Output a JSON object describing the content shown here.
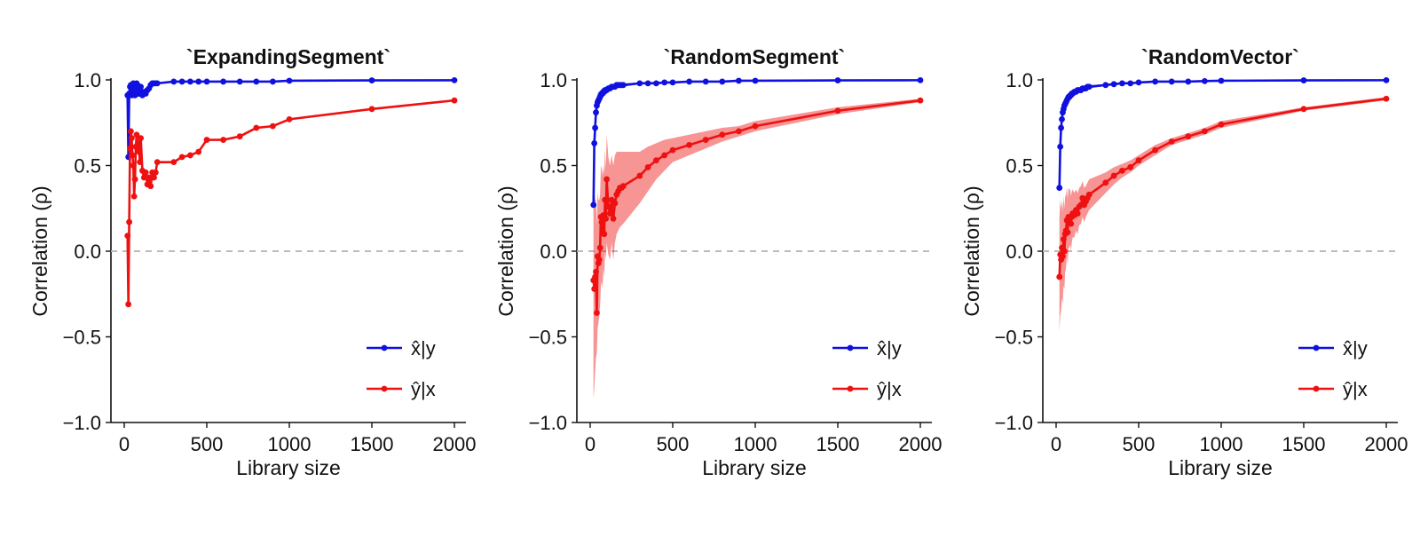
{
  "chart_data": [
    {
      "type": "line",
      "title": "`ExpandingSegment`",
      "xlabel": "Library size",
      "ylabel": "Correlation (ρ)",
      "xlim": [
        0,
        2000
      ],
      "ylim": [
        -1.0,
        1.0
      ],
      "xticks": [
        0,
        500,
        1000,
        1500,
        2000
      ],
      "yticks": [
        -1.0,
        -0.5,
        0.0,
        0.5,
        1.0
      ],
      "xtick_labels": [
        "0",
        "500",
        "1000",
        "1500",
        "2000"
      ],
      "ytick_labels": [
        "−1.0",
        "−0.5",
        "0.0",
        "0.5",
        "1.0"
      ],
      "reference_line": {
        "y": 0,
        "style": "dashed",
        "color": "#bbbbbb"
      },
      "grid": false,
      "legend": "bottom-right",
      "series": [
        {
          "name": "x̂|y",
          "color": "#1010e0",
          "x": [
            20,
            25,
            30,
            35,
            40,
            45,
            50,
            55,
            60,
            65,
            70,
            75,
            80,
            85,
            90,
            95,
            100,
            110,
            120,
            130,
            140,
            150,
            160,
            170,
            180,
            190,
            200,
            300,
            350,
            400,
            450,
            500,
            600,
            700,
            800,
            900,
            1000,
            1500,
            2000
          ],
          "y": [
            0.91,
            0.55,
            0.92,
            0.96,
            0.97,
            0.91,
            0.94,
            0.98,
            0.94,
            0.91,
            0.95,
            0.98,
            0.97,
            0.92,
            0.92,
            0.93,
            0.96,
            0.91,
            0.93,
            0.92,
            0.94,
            0.95,
            0.97,
            0.98,
            0.98,
            0.98,
            0.98,
            0.99,
            0.99,
            0.99,
            0.99,
            0.99,
            0.99,
            0.99,
            0.99,
            0.99,
            0.995,
            0.997,
            0.998
          ]
        },
        {
          "name": "ŷ|x",
          "color": "#ee1111",
          "x": [
            20,
            25,
            30,
            35,
            40,
            45,
            50,
            55,
            60,
            65,
            70,
            75,
            80,
            85,
            90,
            95,
            100,
            110,
            120,
            130,
            140,
            150,
            160,
            170,
            180,
            190,
            200,
            300,
            350,
            400,
            450,
            500,
            600,
            700,
            800,
            900,
            1000,
            1500,
            2000
          ],
          "y": [
            0.09,
            -0.31,
            0.17,
            0.6,
            0.7,
            0.66,
            0.56,
            0.5,
            0.32,
            0.42,
            0.61,
            0.68,
            0.6,
            0.63,
            0.58,
            0.52,
            0.66,
            0.47,
            0.43,
            0.46,
            0.39,
            0.43,
            0.38,
            0.46,
            0.43,
            0.46,
            0.52,
            0.52,
            0.55,
            0.56,
            0.58,
            0.65,
            0.65,
            0.67,
            0.72,
            0.73,
            0.77,
            0.83,
            0.88
          ]
        }
      ]
    },
    {
      "type": "line",
      "title": "`RandomSegment`",
      "xlabel": "Library size",
      "ylabel": "Correlation (ρ)",
      "xlim": [
        0,
        2000
      ],
      "ylim": [
        -1.0,
        1.0
      ],
      "xticks": [
        0,
        500,
        1000,
        1500,
        2000
      ],
      "yticks": [
        -1.0,
        -0.5,
        0.0,
        0.5,
        1.0
      ],
      "xtick_labels": [
        "0",
        "500",
        "1000",
        "1500",
        "2000"
      ],
      "ytick_labels": [
        "−1.0",
        "−0.5",
        "0.0",
        "0.5",
        "1.0"
      ],
      "reference_line": {
        "y": 0,
        "style": "dashed",
        "color": "#bbbbbb"
      },
      "grid": false,
      "legend": "bottom-right",
      "series": [
        {
          "name": "x̂|y",
          "color": "#1010e0",
          "x": [
            20,
            25,
            30,
            35,
            40,
            45,
            50,
            55,
            60,
            65,
            70,
            75,
            80,
            85,
            90,
            95,
            100,
            110,
            120,
            130,
            140,
            150,
            160,
            170,
            180,
            190,
            200,
            300,
            350,
            400,
            450,
            500,
            600,
            700,
            800,
            900,
            1000,
            1500,
            2000
          ],
          "y": [
            0.27,
            0.63,
            0.72,
            0.81,
            0.85,
            0.87,
            0.88,
            0.89,
            0.9,
            0.91,
            0.92,
            0.92,
            0.93,
            0.93,
            0.94,
            0.94,
            0.94,
            0.95,
            0.95,
            0.96,
            0.96,
            0.96,
            0.97,
            0.97,
            0.97,
            0.97,
            0.97,
            0.98,
            0.98,
            0.98,
            0.985,
            0.985,
            0.99,
            0.99,
            0.99,
            0.995,
            0.995,
            0.997,
            0.998
          ],
          "band_lower": [
            0.2,
            0.52,
            0.64,
            0.74,
            0.8,
            0.83,
            0.84,
            0.86,
            0.87,
            0.88,
            0.89,
            0.9,
            0.91,
            0.91,
            0.92,
            0.92,
            0.92,
            0.93,
            0.94,
            0.95,
            0.95,
            0.95,
            0.96,
            0.96,
            0.96,
            0.96,
            0.96,
            0.975,
            0.975,
            0.98,
            0.98,
            0.98,
            0.985,
            0.985,
            0.99,
            0.99,
            0.99,
            0.995,
            0.996
          ],
          "band_upper": [
            0.36,
            0.72,
            0.8,
            0.87,
            0.9,
            0.92,
            0.93,
            0.93,
            0.94,
            0.94,
            0.95,
            0.95,
            0.95,
            0.95,
            0.96,
            0.96,
            0.96,
            0.97,
            0.97,
            0.97,
            0.97,
            0.97,
            0.98,
            0.98,
            0.98,
            0.98,
            0.98,
            0.985,
            0.985,
            0.99,
            0.99,
            0.99,
            0.995,
            0.995,
            0.995,
            0.998,
            0.998,
            0.999,
            1.0
          ]
        },
        {
          "name": "ŷ|x",
          "color": "#ee1111",
          "x": [
            20,
            25,
            30,
            35,
            40,
            45,
            50,
            55,
            60,
            65,
            70,
            75,
            80,
            85,
            90,
            95,
            100,
            110,
            120,
            130,
            140,
            150,
            160,
            170,
            180,
            190,
            200,
            300,
            350,
            400,
            450,
            500,
            600,
            700,
            800,
            900,
            1000,
            1500,
            2000
          ],
          "y": [
            -0.17,
            -0.22,
            -0.15,
            -0.12,
            -0.36,
            -0.03,
            -0.07,
            -0.05,
            0.02,
            0.2,
            0.17,
            0.12,
            0.21,
            0.1,
            0.3,
            0.19,
            0.42,
            0.26,
            0.22,
            0.3,
            0.19,
            0.28,
            0.33,
            0.35,
            0.37,
            0.37,
            0.38,
            0.44,
            0.49,
            0.53,
            0.56,
            0.59,
            0.62,
            0.65,
            0.68,
            0.7,
            0.73,
            0.82,
            0.88
          ],
          "band_lower": [
            -0.86,
            -0.8,
            -0.7,
            -0.62,
            -0.6,
            -0.45,
            -0.42,
            -0.38,
            -0.32,
            -0.2,
            -0.18,
            -0.22,
            -0.1,
            -0.15,
            0.0,
            -0.05,
            0.05,
            -0.02,
            -0.05,
            0.05,
            -0.05,
            0.05,
            0.1,
            0.12,
            0.14,
            0.15,
            0.16,
            0.28,
            0.35,
            0.42,
            0.47,
            0.52,
            0.56,
            0.6,
            0.64,
            0.67,
            0.7,
            0.8,
            0.87
          ],
          "band_upper": [
            0.4,
            0.35,
            0.3,
            0.3,
            0.15,
            0.35,
            0.3,
            0.3,
            0.33,
            0.5,
            0.48,
            0.44,
            0.5,
            0.45,
            0.6,
            0.48,
            0.68,
            0.55,
            0.5,
            0.56,
            0.5,
            0.56,
            0.58,
            0.58,
            0.58,
            0.58,
            0.58,
            0.58,
            0.61,
            0.63,
            0.65,
            0.66,
            0.68,
            0.7,
            0.72,
            0.73,
            0.76,
            0.84,
            0.89
          ]
        }
      ]
    },
    {
      "type": "line",
      "title": "`RandomVector`",
      "xlabel": "Library size",
      "ylabel": "Correlation (ρ)",
      "xlim": [
        0,
        2000
      ],
      "ylim": [
        -1.0,
        1.0
      ],
      "xticks": [
        0,
        500,
        1000,
        1500,
        2000
      ],
      "yticks": [
        -1.0,
        -0.5,
        0.0,
        0.5,
        1.0
      ],
      "xtick_labels": [
        "0",
        "500",
        "1000",
        "1500",
        "2000"
      ],
      "ytick_labels": [
        "−1.0",
        "−0.5",
        "0.0",
        "0.5",
        "1.0"
      ],
      "reference_line": {
        "y": 0,
        "style": "dashed",
        "color": "#bbbbbb"
      },
      "grid": false,
      "legend": "bottom-right",
      "series": [
        {
          "name": "x̂|y",
          "color": "#1010e0",
          "x": [
            20,
            25,
            30,
            35,
            40,
            45,
            50,
            55,
            60,
            65,
            70,
            75,
            80,
            85,
            90,
            95,
            100,
            110,
            120,
            130,
            140,
            150,
            160,
            170,
            180,
            190,
            200,
            300,
            350,
            400,
            450,
            500,
            600,
            700,
            800,
            900,
            1000,
            1500,
            2000
          ],
          "y": [
            0.37,
            0.61,
            0.72,
            0.77,
            0.81,
            0.83,
            0.85,
            0.86,
            0.87,
            0.88,
            0.89,
            0.9,
            0.9,
            0.91,
            0.91,
            0.92,
            0.92,
            0.93,
            0.93,
            0.94,
            0.94,
            0.94,
            0.95,
            0.95,
            0.95,
            0.96,
            0.96,
            0.97,
            0.975,
            0.98,
            0.98,
            0.985,
            0.99,
            0.99,
            0.99,
            0.993,
            0.995,
            0.997,
            0.998
          ],
          "band_lower": [
            0.3,
            0.55,
            0.67,
            0.73,
            0.77,
            0.8,
            0.82,
            0.83,
            0.85,
            0.86,
            0.87,
            0.88,
            0.88,
            0.89,
            0.9,
            0.9,
            0.91,
            0.92,
            0.92,
            0.93,
            0.93,
            0.93,
            0.94,
            0.94,
            0.94,
            0.95,
            0.95,
            0.965,
            0.97,
            0.975,
            0.975,
            0.98,
            0.985,
            0.985,
            0.988,
            0.99,
            0.992,
            0.995,
            0.997
          ],
          "band_upper": [
            0.44,
            0.67,
            0.77,
            0.81,
            0.85,
            0.86,
            0.88,
            0.89,
            0.89,
            0.9,
            0.91,
            0.92,
            0.92,
            0.93,
            0.93,
            0.94,
            0.94,
            0.95,
            0.95,
            0.95,
            0.955,
            0.955,
            0.96,
            0.96,
            0.96,
            0.97,
            0.97,
            0.975,
            0.98,
            0.985,
            0.985,
            0.99,
            0.995,
            0.995,
            0.995,
            0.996,
            0.998,
            0.999,
            1.0
          ]
        },
        {
          "name": "ŷ|x",
          "color": "#ee1111",
          "x": [
            20,
            25,
            30,
            35,
            40,
            45,
            50,
            55,
            60,
            65,
            70,
            75,
            80,
            85,
            90,
            95,
            100,
            110,
            120,
            130,
            140,
            150,
            160,
            170,
            180,
            190,
            200,
            300,
            350,
            400,
            450,
            500,
            600,
            700,
            800,
            900,
            1000,
            1500,
            2000
          ],
          "y": [
            -0.15,
            -0.02,
            -0.05,
            0.02,
            -0.03,
            0.07,
            0.0,
            0.1,
            0.12,
            0.18,
            0.11,
            0.2,
            0.19,
            0.2,
            0.16,
            0.2,
            0.22,
            0.21,
            0.24,
            0.22,
            0.26,
            0.27,
            0.31,
            0.27,
            0.29,
            0.31,
            0.33,
            0.4,
            0.44,
            0.47,
            0.49,
            0.53,
            0.59,
            0.64,
            0.67,
            0.7,
            0.74,
            0.83,
            0.89
          ],
          "band_lower": [
            -0.47,
            -0.38,
            -0.35,
            -0.28,
            -0.3,
            -0.2,
            -0.22,
            -0.12,
            -0.1,
            -0.02,
            -0.08,
            0.02,
            0.02,
            0.04,
            0.0,
            0.05,
            0.08,
            0.08,
            0.12,
            0.1,
            0.15,
            0.16,
            0.2,
            0.17,
            0.2,
            0.22,
            0.24,
            0.34,
            0.39,
            0.43,
            0.46,
            0.5,
            0.56,
            0.62,
            0.65,
            0.68,
            0.72,
            0.82,
            0.88
          ],
          "band_upper": [
            0.2,
            0.3,
            0.25,
            0.3,
            0.23,
            0.32,
            0.25,
            0.32,
            0.33,
            0.37,
            0.3,
            0.37,
            0.36,
            0.36,
            0.32,
            0.35,
            0.36,
            0.34,
            0.36,
            0.34,
            0.37,
            0.38,
            0.41,
            0.37,
            0.38,
            0.4,
            0.42,
            0.46,
            0.49,
            0.51,
            0.53,
            0.56,
            0.62,
            0.66,
            0.69,
            0.72,
            0.76,
            0.84,
            0.9
          ]
        }
      ]
    }
  ]
}
